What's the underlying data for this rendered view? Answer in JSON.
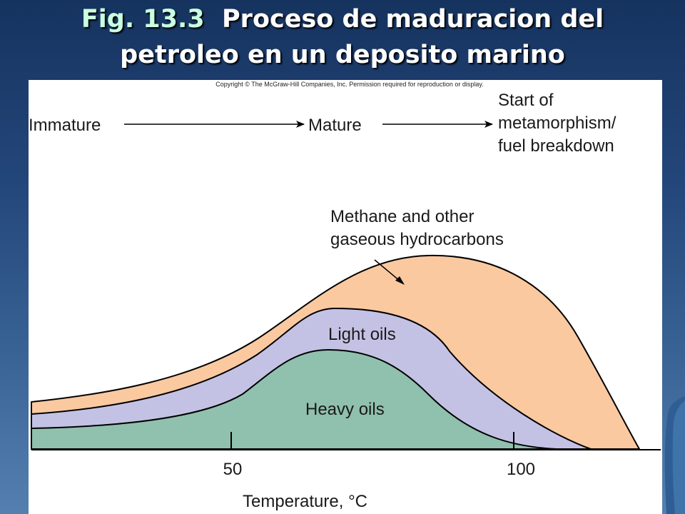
{
  "slide": {
    "title_prefix": "Fig. 13.3",
    "title_line1_rest": "Proceso de maduracion del",
    "title_line2": "petroleo en un deposito marino"
  },
  "figure": {
    "copyright": "Copyright © The McGraw-Hill Companies, Inc. Permission required for reproduction or display.",
    "stages": {
      "immature": "Immature",
      "mature": "Mature",
      "end_line1": "Start of",
      "end_line2": "metamorphism/",
      "end_line3": "fuel breakdown"
    },
    "methane_line1": "Methane and other",
    "methane_line2": "gaseous hydrocarbons",
    "light_oils": "Light oils",
    "heavy_oils": "Heavy oils",
    "tick_50": "50",
    "tick_100": "100",
    "axis_label": "Temperature,  °C",
    "colors": {
      "gas": "#fbc9a0",
      "light_oil": "#c4c2e4",
      "heavy_oil": "#90c0ae",
      "outline": "#000000"
    }
  }
}
